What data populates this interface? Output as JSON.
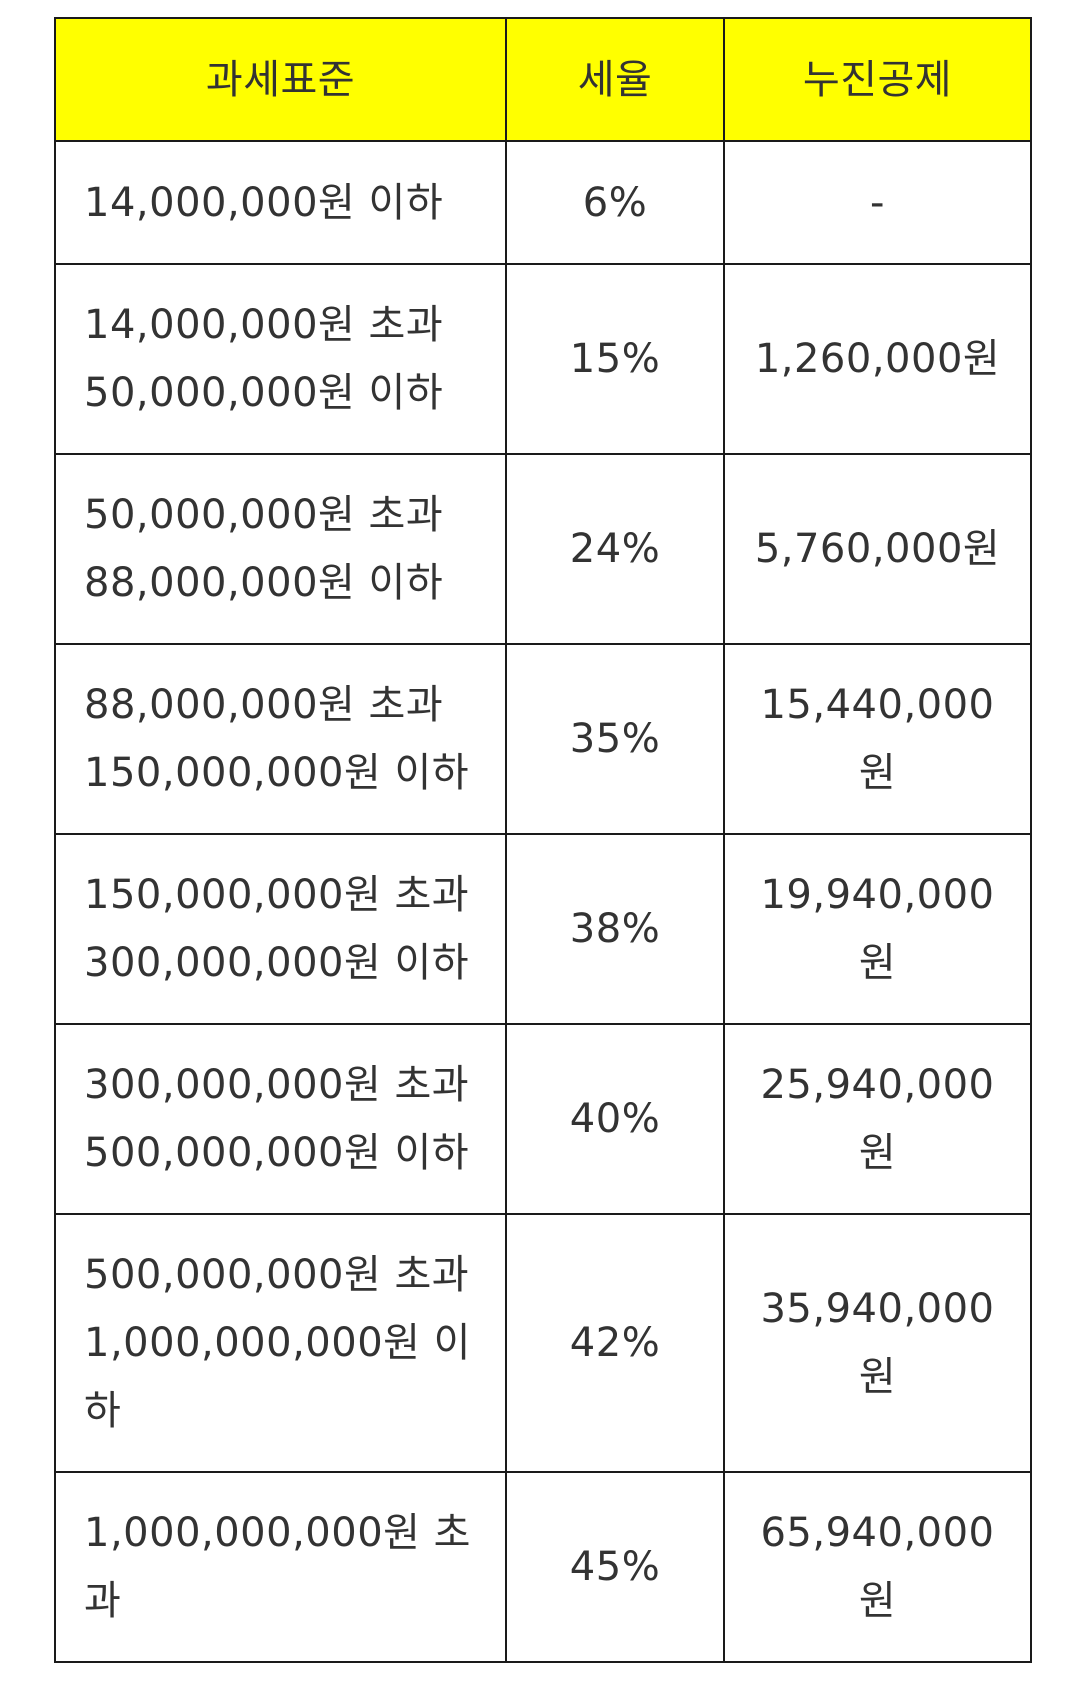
{
  "table": {
    "headers": [
      "과세표준",
      "세율",
      "누진공제"
    ],
    "rows": [
      {
        "bracket": [
          "14,000,000원 이하"
        ],
        "rate": "6%",
        "deduction": [
          "-"
        ]
      },
      {
        "bracket": [
          "14,000,000원 초과",
          "50,000,000원 이하"
        ],
        "rate": "15%",
        "deduction": [
          "1,260,000원"
        ]
      },
      {
        "bracket": [
          "50,000,000원 초과",
          "88,000,000원 이하"
        ],
        "rate": "24%",
        "deduction": [
          "5,760,000원"
        ]
      },
      {
        "bracket": [
          "88,000,000원 초과",
          "150,000,000원 이하"
        ],
        "rate": "35%",
        "deduction": [
          "15,440,000",
          "원"
        ]
      },
      {
        "bracket": [
          "150,000,000원 초과",
          "300,000,000원 이하"
        ],
        "rate": "38%",
        "deduction": [
          "19,940,000",
          "원"
        ]
      },
      {
        "bracket": [
          "300,000,000원 초과",
          "500,000,000원 이하"
        ],
        "rate": "40%",
        "deduction": [
          "25,940,000",
          "원"
        ]
      },
      {
        "bracket": [
          "500,000,000원 초과",
          "1,000,000,000원 이",
          "하"
        ],
        "rate": "42%",
        "deduction": [
          "35,940,000",
          "원"
        ]
      },
      {
        "bracket": [
          "1,000,000,000원 초",
          "과"
        ],
        "rate": "45%",
        "deduction": [
          "65,940,000",
          "원"
        ]
      }
    ]
  },
  "colors": {
    "header_background": "#ffff00",
    "border": "#1a1a1a",
    "text": "#333333"
  }
}
